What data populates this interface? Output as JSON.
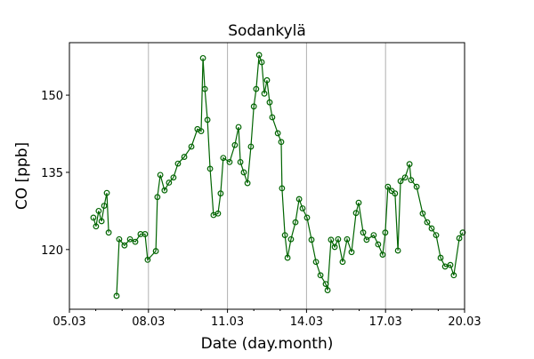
{
  "chart_data": {
    "type": "line",
    "title": "Sodankylä",
    "xlabel": "Date (day.month)",
    "ylabel": "CO [ppb]",
    "xlim": [
      5,
      20
    ],
    "ylim": [
      108.4,
      160.2
    ],
    "x_ticks": [
      5,
      8,
      11,
      14,
      17,
      20
    ],
    "x_tick_labels": [
      "05.03",
      "08.03",
      "11.03",
      "14.03",
      "17.03",
      "20.03"
    ],
    "x_minor_ticks": [
      6,
      7,
      9,
      10,
      12,
      13,
      15,
      16,
      18,
      19
    ],
    "y_ticks": [
      120,
      135,
      150
    ],
    "y_tick_labels": [
      "120",
      "135",
      "150"
    ],
    "grid": "vertical major x gridlines",
    "series": [
      {
        "name": "CO",
        "color": "#006400",
        "marker": "open-circle",
        "points": [
          [
            5.91,
            126.2
          ],
          [
            6.01,
            124.5
          ],
          [
            6.11,
            127.5
          ],
          [
            6.22,
            125.5
          ],
          [
            6.32,
            128.5
          ],
          [
            6.42,
            131.0
          ],
          [
            6.49,
            123.3
          ],
          null,
          [
            6.79,
            111.0
          ],
          [
            6.89,
            122.0
          ],
          [
            7.09,
            120.8
          ],
          [
            7.3,
            122.0
          ],
          [
            7.5,
            121.5
          ],
          [
            7.7,
            123.0
          ],
          [
            7.87,
            123.0
          ],
          [
            7.97,
            118.0
          ],
          [
            8.28,
            119.7
          ],
          [
            8.34,
            130.2
          ],
          [
            8.45,
            134.5
          ],
          [
            8.61,
            131.5
          ],
          [
            8.78,
            133.0
          ],
          [
            8.95,
            134.0
          ],
          [
            9.12,
            136.7
          ],
          [
            9.36,
            138.0
          ],
          [
            9.63,
            140.0
          ],
          [
            9.86,
            143.4
          ],
          [
            10.0,
            143.0
          ],
          [
            10.07,
            157.2
          ],
          [
            10.14,
            151.2
          ],
          [
            10.24,
            145.2
          ],
          [
            10.34,
            135.7
          ],
          [
            10.47,
            126.7
          ],
          [
            10.64,
            127.0
          ],
          [
            10.74,
            130.9
          ],
          [
            10.84,
            137.8
          ],
          [
            11.08,
            137.0
          ],
          [
            11.28,
            140.3
          ],
          [
            11.42,
            143.8
          ],
          [
            11.49,
            137.0
          ],
          [
            11.62,
            135.0
          ],
          [
            11.76,
            132.9
          ],
          [
            11.89,
            140.0
          ],
          [
            12.0,
            147.8
          ],
          [
            12.09,
            151.2
          ],
          [
            12.2,
            157.8
          ],
          [
            12.3,
            156.4
          ],
          [
            12.4,
            150.3
          ],
          [
            12.5,
            152.9
          ],
          [
            12.6,
            148.6
          ],
          [
            12.7,
            145.7
          ],
          [
            12.91,
            142.6
          ],
          [
            13.04,
            140.9
          ],
          [
            13.07,
            131.9
          ],
          [
            13.18,
            122.8
          ],
          [
            13.28,
            118.4
          ],
          [
            13.41,
            122.0
          ],
          [
            13.58,
            125.3
          ],
          [
            13.72,
            129.8
          ],
          [
            13.85,
            128.0
          ],
          [
            14.02,
            126.2
          ],
          [
            14.19,
            121.9
          ],
          [
            14.36,
            117.6
          ],
          [
            14.53,
            115.0
          ],
          [
            14.73,
            113.3
          ],
          [
            14.8,
            112.1
          ],
          [
            14.93,
            121.9
          ],
          [
            15.07,
            120.5
          ],
          [
            15.2,
            122.0
          ],
          [
            15.37,
            117.6
          ],
          [
            15.54,
            122.0
          ],
          [
            15.71,
            119.5
          ],
          [
            15.88,
            127.1
          ],
          [
            15.98,
            129.1
          ],
          [
            16.15,
            123.3
          ],
          [
            16.28,
            121.9
          ],
          [
            16.55,
            122.8
          ],
          [
            16.72,
            121.0
          ],
          [
            16.89,
            119.0
          ],
          [
            16.99,
            123.3
          ],
          [
            17.09,
            132.2
          ],
          [
            17.23,
            131.4
          ],
          [
            17.36,
            130.9
          ],
          [
            17.47,
            119.8
          ],
          [
            17.57,
            133.3
          ],
          [
            17.74,
            134.0
          ],
          [
            17.91,
            136.6
          ],
          [
            17.97,
            133.5
          ],
          [
            18.18,
            132.2
          ],
          [
            18.41,
            127.0
          ],
          [
            18.58,
            125.3
          ],
          [
            18.75,
            124.1
          ],
          [
            18.92,
            122.8
          ],
          [
            19.09,
            118.4
          ],
          [
            19.26,
            116.7
          ],
          [
            19.46,
            117.0
          ],
          [
            19.59,
            115.0
          ],
          [
            19.8,
            122.2
          ],
          [
            19.93,
            123.3
          ]
        ]
      }
    ]
  }
}
